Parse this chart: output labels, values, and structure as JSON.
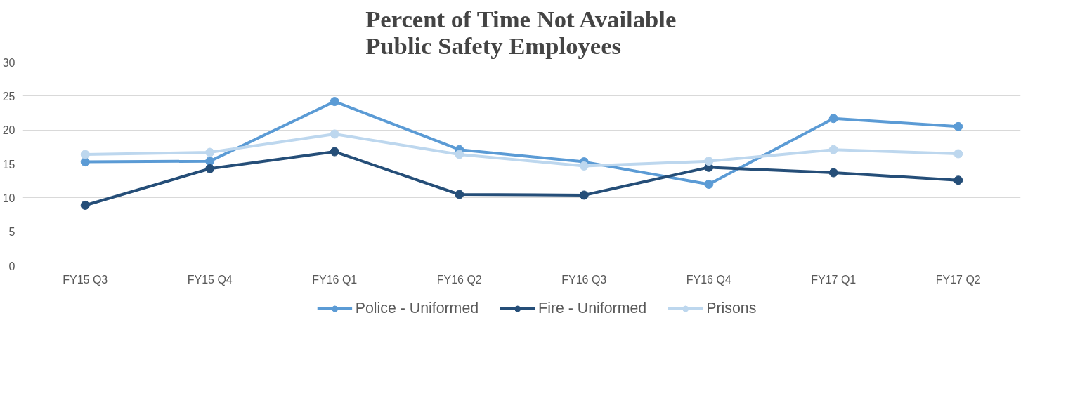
{
  "chart_data": {
    "type": "line",
    "title": "Percent of Time Not Available\nPublic Safety Employees",
    "categories": [
      "FY15 Q3",
      "FY15 Q4",
      "FY16 Q1",
      "FY16 Q2",
      "FY16 Q3",
      "FY16 Q4",
      "FY17 Q1",
      "FY17 Q2"
    ],
    "series": [
      {
        "name": "Police - Uniformed",
        "color": "#5b9bd5",
        "values": [
          15.3,
          15.4,
          24.2,
          17.1,
          15.3,
          12.0,
          21.7,
          20.5
        ]
      },
      {
        "name": "Fire - Uniformed",
        "color": "#254e78",
        "values": [
          8.9,
          14.3,
          16.8,
          10.5,
          10.4,
          14.5,
          13.7,
          12.6
        ]
      },
      {
        "name": "Prisons",
        "color": "#bdd7ee",
        "values": [
          16.4,
          16.7,
          19.4,
          16.4,
          14.7,
          15.4,
          17.1,
          16.5
        ]
      }
    ],
    "ylim": [
      0,
      30
    ],
    "yticks": [
      0,
      5,
      10,
      15,
      20,
      25,
      30
    ],
    "grid": "y",
    "legend": "bottom",
    "marker": "circle",
    "line_style": "solid"
  }
}
